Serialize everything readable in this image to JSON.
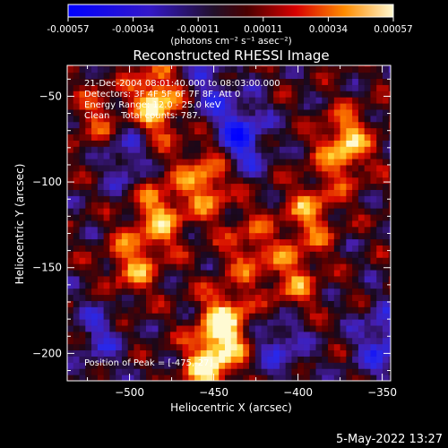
{
  "chart_data": {
    "type": "heatmap",
    "title": "Reconstructed RHESSI Image",
    "xlabel": "Heliocentric X (arcsec)",
    "ylabel": "Heliocentric Y (arcsec)",
    "xlim": [
      -537,
      -345
    ],
    "ylim": [
      -216,
      -32
    ],
    "x_ticks": [
      -500,
      -450,
      -400,
      -350
    ],
    "y_ticks": [
      -50,
      -100,
      -150,
      -200
    ],
    "colorbar": {
      "range": [
        -0.00057,
        0.00057
      ],
      "ticks": [
        "-0.00057",
        "-0.00034",
        "-0.00011",
        "0.00011",
        "0.00034",
        "0.00057"
      ],
      "unit_label": "(photons cm⁻² s⁻¹ asec⁻²)"
    },
    "annotations": [
      "21-Dec-2004 08:01:40.000 to 08:03:00.000",
      "Detectors: 3F 4F 5F 6F 7F 8F, Att 0",
      "Energy Range: 12.0 - 25.0 keV",
      "Clean    Total counts: 787."
    ],
    "peak_label": "Position of Peak = [-475,-27]",
    "bright_features": [
      {
        "x": -486,
        "y": -55,
        "level": 0.95
      },
      {
        "x": -456,
        "y": -100,
        "level": 0.75
      },
      {
        "x": -484,
        "y": -120,
        "level": 0.7
      },
      {
        "x": -500,
        "y": -150,
        "level": 0.6
      },
      {
        "x": -445,
        "y": -185,
        "level": 0.9
      },
      {
        "x": -455,
        "y": -210,
        "level": 0.8
      },
      {
        "x": -374,
        "y": -80,
        "level": 0.85
      },
      {
        "x": -395,
        "y": -120,
        "level": 0.6
      },
      {
        "x": -405,
        "y": -160,
        "level": 0.55
      },
      {
        "x": -430,
        "y": -140,
        "level": 0.5
      },
      {
        "x": -520,
        "y": -65,
        "level": 0.45
      }
    ],
    "dark_features": [
      {
        "x": -436,
        "y": -75,
        "level": -0.8
      },
      {
        "x": -505,
        "y": -85,
        "level": -0.5
      },
      {
        "x": -352,
        "y": -195,
        "level": -0.6
      },
      {
        "x": -412,
        "y": -195,
        "level": -0.5
      },
      {
        "x": -520,
        "y": -190,
        "level": -0.4
      },
      {
        "x": -455,
        "y": -45,
        "level": -0.4
      }
    ]
  },
  "footer": {
    "date": "5-May-2022 13:27"
  }
}
